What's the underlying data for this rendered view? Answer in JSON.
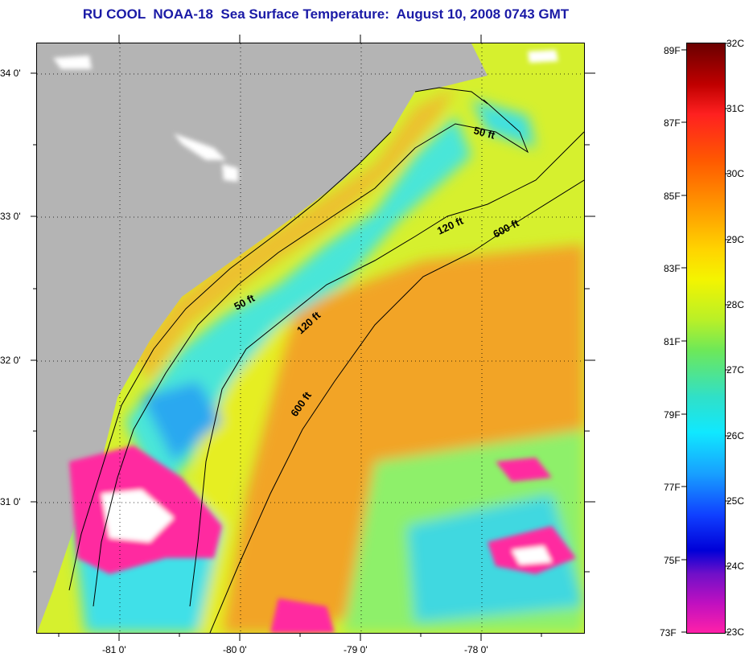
{
  "title": "RU COOL  NOAA-18  Sea Surface Temperature:  August 10, 2008 0743 GMT",
  "map": {
    "lat_labels": [
      "34 0'",
      "33 0'",
      "32 0'",
      "31 0'"
    ],
    "lon_labels": [
      "-81 0'",
      "-80 0'",
      "-79 0'",
      "-78 0'"
    ],
    "contours": [
      {
        "label": "50 ft",
        "depth_ft": 50
      },
      {
        "label": "50 ft",
        "depth_ft": 50
      },
      {
        "label": "120 ft",
        "depth_ft": 120
      },
      {
        "label": "120 ft",
        "depth_ft": 120
      },
      {
        "label": "600 ft",
        "depth_ft": 600
      },
      {
        "label": "600 ft",
        "depth_ft": 600
      }
    ],
    "colors": {
      "land": "#b4b4b4",
      "cloud_magenta": "#ff2aa0",
      "cloud_white": "#ffffff",
      "warm": "#f0a020",
      "yellow": "#e8f020",
      "cyan": "#30e0e8"
    }
  },
  "colorbar": {
    "fahrenheit_labels": [
      "89F",
      "87F",
      "85F",
      "83F",
      "81F",
      "79F",
      "77F",
      "75F",
      "73F"
    ],
    "celsius_labels": [
      "32C",
      "31C",
      "30C",
      "29C",
      "28C",
      "27C",
      "26C",
      "25C",
      "24C",
      "23C"
    ]
  }
}
